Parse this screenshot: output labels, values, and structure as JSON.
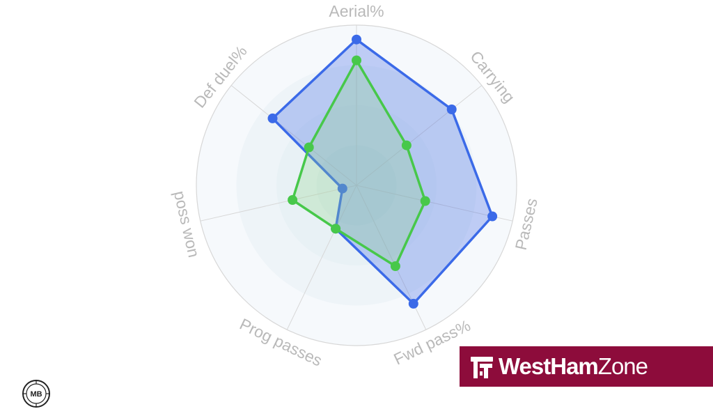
{
  "chart_data": {
    "type": "radar",
    "title": "",
    "axes": [
      "Aerial%",
      "Carrying",
      "Passes",
      "Fwd pass%",
      "Prog passes",
      "poss won",
      "Def duel%"
    ],
    "rmax": 100,
    "rings": 4,
    "series": [
      {
        "color": "#3b6ae8",
        "fill": "#2d5be3",
        "values": [
          91,
          76,
          87,
          82,
          30,
          9,
          67
        ]
      },
      {
        "color": "#47c84a",
        "fill": "#8fd58a",
        "values": [
          78,
          40,
          44,
          56,
          30,
          41,
          38
        ]
      }
    ],
    "colors": {
      "ring_outer": "#f7f9fc",
      "ring_inner": "#e3eef4",
      "grid": "#d7d7d7",
      "label": "#b9b9b9"
    }
  },
  "brand": {
    "word1": "WestHam",
    "word2": "Zone",
    "background": "#8d0c3b",
    "logo_icon": "hammers-icon"
  },
  "badge": {
    "text": "MB",
    "icon": "mb-badge-icon"
  }
}
